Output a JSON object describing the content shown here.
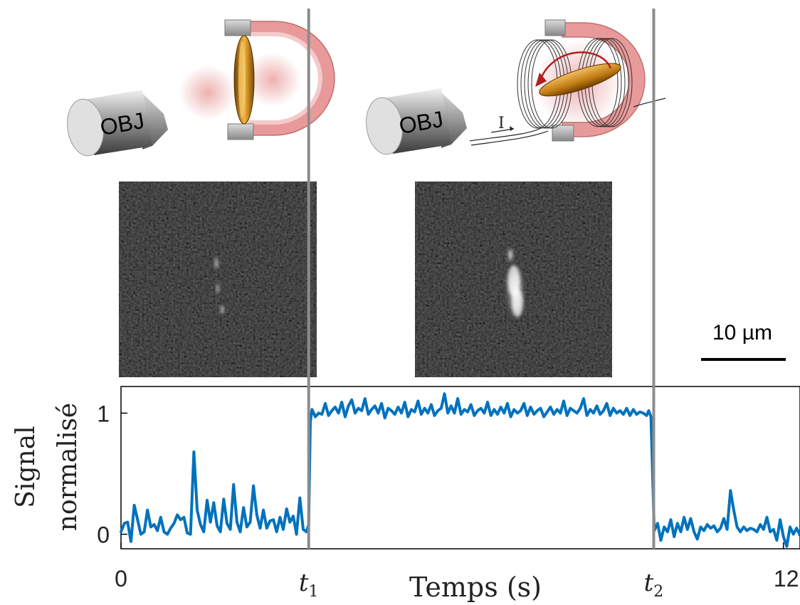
{
  "panels": [
    {
      "objective_label": "OBJ"
    },
    {
      "objective_label": "OBJ",
      "current_label": "I"
    }
  ],
  "scalebar": {
    "label": "10 µm"
  },
  "chart_data": {
    "type": "line",
    "title": "",
    "xlabel": "Temps (s)",
    "ylabel_lines": [
      "Signal",
      "normalisé"
    ],
    "xlim": [
      0,
      12.3
    ],
    "ylim": [
      -0.12,
      1.22
    ],
    "yticks": [
      {
        "value": 0,
        "label": "0"
      },
      {
        "value": 1,
        "label": "1"
      }
    ],
    "xticks": [
      {
        "value": 0,
        "label": "0",
        "italic": false
      },
      {
        "value": 3.4,
        "label": "t",
        "sub": "1",
        "italic": true
      },
      {
        "value": 9.65,
        "label": "t",
        "sub": "2",
        "italic": true
      },
      {
        "value": 12,
        "label": "12",
        "italic": false
      }
    ],
    "event_lines": [
      3.4,
      9.65
    ],
    "color": "#0072bd",
    "series": [
      {
        "values": [
          [
            0.0,
            0.02
          ],
          [
            0.06,
            0.09
          ],
          [
            0.12,
            0.1
          ],
          [
            0.18,
            -0.06
          ],
          [
            0.24,
            0.24
          ],
          [
            0.3,
            0.12
          ],
          [
            0.36,
            0.0
          ],
          [
            0.42,
            0.02
          ],
          [
            0.48,
            0.2
          ],
          [
            0.54,
            0.06
          ],
          [
            0.6,
            0.08
          ],
          [
            0.66,
            0.03
          ],
          [
            0.72,
            0.14
          ],
          [
            0.78,
            0.02
          ],
          [
            0.84,
            0.0
          ],
          [
            0.9,
            0.05
          ],
          [
            0.96,
            0.09
          ],
          [
            1.02,
            0.16
          ],
          [
            1.08,
            0.12
          ],
          [
            1.14,
            0.14
          ],
          [
            1.2,
            0.01
          ],
          [
            1.26,
            0.0
          ],
          [
            1.32,
            0.68
          ],
          [
            1.38,
            0.2
          ],
          [
            1.44,
            0.08
          ],
          [
            1.5,
            0.02
          ],
          [
            1.56,
            0.28
          ],
          [
            1.62,
            0.1
          ],
          [
            1.68,
            0.26
          ],
          [
            1.74,
            0.07
          ],
          [
            1.8,
            0.02
          ],
          [
            1.86,
            0.29
          ],
          [
            1.92,
            0.09
          ],
          [
            1.98,
            0.04
          ],
          [
            2.04,
            0.41
          ],
          [
            2.1,
            0.1
          ],
          [
            2.16,
            0.02
          ],
          [
            2.22,
            0.22
          ],
          [
            2.28,
            0.06
          ],
          [
            2.34,
            0.1
          ],
          [
            2.4,
            0.4
          ],
          [
            2.46,
            0.16
          ],
          [
            2.52,
            0.05
          ],
          [
            2.58,
            0.2
          ],
          [
            2.64,
            0.05
          ],
          [
            2.7,
            0.11
          ],
          [
            2.76,
            0.12
          ],
          [
            2.82,
            0.02
          ],
          [
            2.88,
            0.14
          ],
          [
            2.94,
            0.04
          ],
          [
            3.0,
            0.21
          ],
          [
            3.06,
            0.1
          ],
          [
            3.12,
            0.15
          ],
          [
            3.18,
            0.0
          ],
          [
            3.24,
            0.3
          ],
          [
            3.3,
            0.04
          ],
          [
            3.36,
            0.02
          ],
          [
            3.4,
            0.08
          ],
          [
            3.43,
            0.93
          ],
          [
            3.46,
            1.03
          ],
          [
            3.52,
            0.97
          ],
          [
            3.58,
            1.0
          ],
          [
            3.64,
            0.99
          ],
          [
            3.7,
            1.08
          ],
          [
            3.76,
            0.98
          ],
          [
            3.82,
            1.02
          ],
          [
            3.88,
            1.05
          ],
          [
            3.94,
            1.0
          ],
          [
            4.0,
            1.09
          ],
          [
            4.06,
            0.97
          ],
          [
            4.12,
            1.06
          ],
          [
            4.18,
            1.11
          ],
          [
            4.24,
            1.0
          ],
          [
            4.3,
            1.04
          ],
          [
            4.36,
            1.02
          ],
          [
            4.42,
            1.12
          ],
          [
            4.48,
            0.99
          ],
          [
            4.54,
            1.03
          ],
          [
            4.6,
            1.06
          ],
          [
            4.66,
            1.0
          ],
          [
            4.72,
            1.08
          ],
          [
            4.78,
            0.96
          ],
          [
            4.84,
            1.04
          ],
          [
            4.9,
            1.02
          ],
          [
            4.96,
            0.99
          ],
          [
            5.02,
            1.05
          ],
          [
            5.08,
            1.0
          ],
          [
            5.14,
            1.09
          ],
          [
            5.2,
            0.97
          ],
          [
            5.26,
            1.03
          ],
          [
            5.32,
            1.01
          ],
          [
            5.38,
            1.1
          ],
          [
            5.44,
            0.99
          ],
          [
            5.5,
            1.04
          ],
          [
            5.56,
            1.0
          ],
          [
            5.62,
            1.07
          ],
          [
            5.68,
            0.98
          ],
          [
            5.74,
            1.02
          ],
          [
            5.8,
            1.04
          ],
          [
            5.86,
            1.16
          ],
          [
            5.92,
            1.0
          ],
          [
            5.98,
            1.06
          ],
          [
            6.04,
            1.0
          ],
          [
            6.1,
            1.12
          ],
          [
            6.16,
            0.99
          ],
          [
            6.22,
            1.03
          ],
          [
            6.28,
            1.01
          ],
          [
            6.34,
            1.07
          ],
          [
            6.4,
            0.98
          ],
          [
            6.46,
            1.02
          ],
          [
            6.52,
            1.04
          ],
          [
            6.58,
            1.0
          ],
          [
            6.64,
            1.09
          ],
          [
            6.7,
            0.98
          ],
          [
            6.76,
            1.03
          ],
          [
            6.82,
            0.99
          ],
          [
            6.88,
            1.05
          ],
          [
            6.94,
            1.0
          ],
          [
            7.0,
            1.08
          ],
          [
            7.06,
            0.97
          ],
          [
            7.12,
            1.03
          ],
          [
            7.18,
            1.0
          ],
          [
            7.24,
            1.02
          ],
          [
            7.3,
            1.08
          ],
          [
            7.36,
            0.98
          ],
          [
            7.42,
            1.05
          ],
          [
            7.48,
            0.99
          ],
          [
            7.54,
            1.02
          ],
          [
            7.6,
            1.04
          ],
          [
            7.66,
            0.97
          ],
          [
            7.72,
            1.01
          ],
          [
            7.78,
            1.05
          ],
          [
            7.84,
            0.99
          ],
          [
            7.9,
            1.03
          ],
          [
            7.96,
            1.0
          ],
          [
            8.02,
            1.1
          ],
          [
            8.08,
            0.98
          ],
          [
            8.14,
            1.04
          ],
          [
            8.2,
            1.02
          ],
          [
            8.26,
            1.0
          ],
          [
            8.32,
            1.04
          ],
          [
            8.38,
            1.12
          ],
          [
            8.44,
            0.98
          ],
          [
            8.5,
            1.03
          ],
          [
            8.56,
            1.0
          ],
          [
            8.62,
            1.06
          ],
          [
            8.68,
            0.99
          ],
          [
            8.74,
            1.02
          ],
          [
            8.8,
            1.08
          ],
          [
            8.86,
            0.98
          ],
          [
            8.92,
            1.04
          ],
          [
            8.98,
            1.0
          ],
          [
            9.04,
            1.02
          ],
          [
            9.1,
            0.99
          ],
          [
            9.16,
            1.04
          ],
          [
            9.22,
            0.98
          ],
          [
            9.28,
            1.03
          ],
          [
            9.34,
            0.99
          ],
          [
            9.4,
            1.01
          ],
          [
            9.46,
            1.0
          ],
          [
            9.52,
            0.98
          ],
          [
            9.56,
            1.02
          ],
          [
            9.6,
            0.97
          ],
          [
            9.63,
            0.5
          ],
          [
            9.66,
            0.03
          ],
          [
            9.72,
            0.09
          ],
          [
            9.78,
            -0.05
          ],
          [
            9.84,
            0.06
          ],
          [
            9.9,
            0.02
          ],
          [
            9.96,
            0.12
          ],
          [
            10.02,
            -0.02
          ],
          [
            10.08,
            0.09
          ],
          [
            10.14,
            0.02
          ],
          [
            10.2,
            0.14
          ],
          [
            10.26,
            0.04
          ],
          [
            10.32,
            0.13
          ],
          [
            10.38,
            0.02
          ],
          [
            10.44,
            -0.04
          ],
          [
            10.5,
            0.06
          ],
          [
            10.56,
            0.03
          ],
          [
            10.62,
            0.08
          ],
          [
            10.68,
            0.05
          ],
          [
            10.74,
            0.07
          ],
          [
            10.8,
            0.02
          ],
          [
            10.86,
            0.05
          ],
          [
            10.92,
            0.13
          ],
          [
            10.98,
            0.04
          ],
          [
            11.04,
            0.36
          ],
          [
            11.1,
            0.2
          ],
          [
            11.16,
            0.06
          ],
          [
            11.22,
            0.02
          ],
          [
            11.28,
            0.06
          ],
          [
            11.34,
            0.03
          ],
          [
            11.4,
            0.05
          ],
          [
            11.46,
            0.04
          ],
          [
            11.52,
            0.02
          ],
          [
            11.58,
            0.08
          ],
          [
            11.64,
            0.04
          ],
          [
            11.7,
            0.14
          ],
          [
            11.76,
            0.02
          ],
          [
            11.82,
            0.04
          ],
          [
            11.88,
            -0.05
          ],
          [
            11.94,
            0.12
          ],
          [
            12.0,
            -0.02
          ],
          [
            12.06,
            -0.1
          ],
          [
            12.12,
            0.06
          ],
          [
            12.18,
            0.0
          ],
          [
            12.24,
            0.05
          ],
          [
            12.3,
            -0.01
          ]
        ]
      }
    ]
  }
}
